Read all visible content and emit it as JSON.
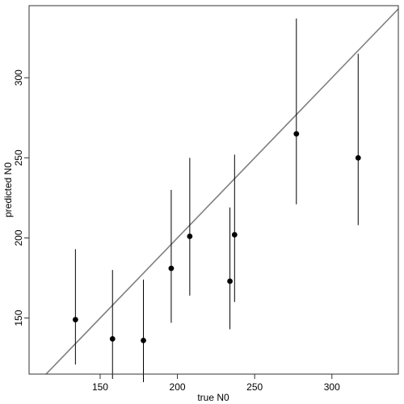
{
  "chart_data": {
    "type": "scatter",
    "title": "",
    "xlabel": "true N0",
    "ylabel": "predicted N0",
    "xlim": [
      104,
      343
    ],
    "ylim": [
      115,
      345
    ],
    "x_ticks": [
      150,
      200,
      250,
      300
    ],
    "y_ticks": [
      150,
      200,
      250,
      300
    ],
    "grid": false,
    "legend": "none",
    "reference_line": {
      "type": "identity",
      "slope": 1,
      "intercept": 0,
      "color": "#7f7f7f"
    },
    "point_color": "#000000",
    "errorbar_color": "#000000",
    "points": [
      {
        "x": 134,
        "y": 149,
        "lower": 121,
        "upper": 193
      },
      {
        "x": 158,
        "y": 137,
        "lower": 112,
        "upper": 180
      },
      {
        "x": 178,
        "y": 136,
        "lower": 110,
        "upper": 174
      },
      {
        "x": 196,
        "y": 181,
        "lower": 147,
        "upper": 230
      },
      {
        "x": 208,
        "y": 201,
        "lower": 164,
        "upper": 250
      },
      {
        "x": 234,
        "y": 173,
        "lower": 143,
        "upper": 219
      },
      {
        "x": 237,
        "y": 202,
        "lower": 160,
        "upper": 252
      },
      {
        "x": 277,
        "y": 265,
        "lower": 221,
        "upper": 337
      },
      {
        "x": 317,
        "y": 250,
        "lower": 208,
        "upper": 315
      }
    ]
  }
}
